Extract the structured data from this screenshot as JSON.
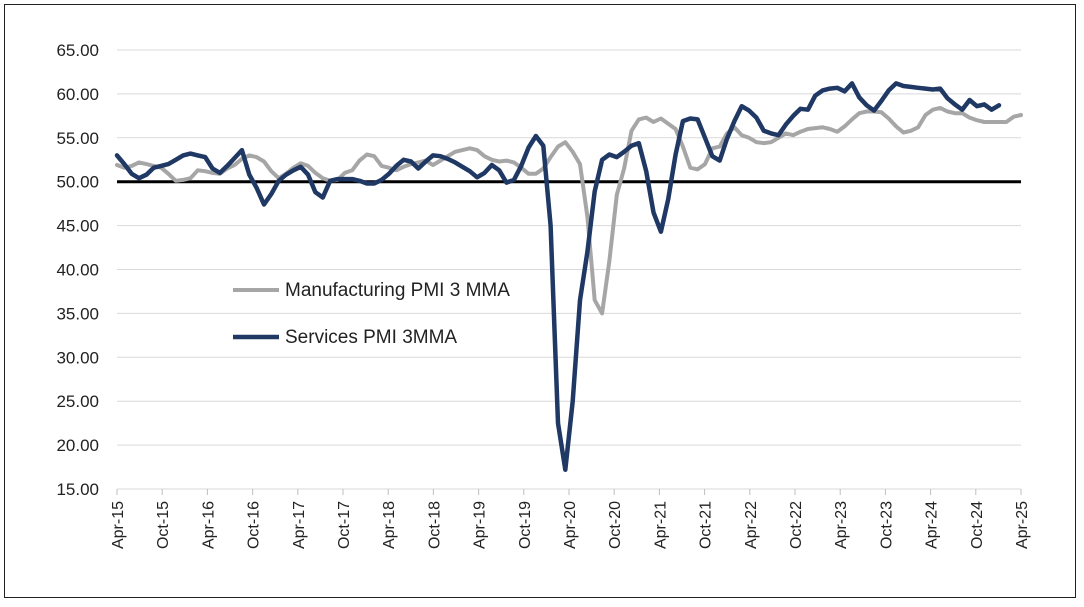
{
  "chart_data": {
    "type": "line",
    "title": "",
    "xlabel": "",
    "ylabel": "",
    "ylim": [
      15,
      65
    ],
    "yticks": [
      "15.00",
      "20.00",
      "25.00",
      "30.00",
      "35.00",
      "40.00",
      "45.00",
      "50.00",
      "55.00",
      "60.00",
      "65.00"
    ],
    "xticks": [
      "Apr-15",
      "Oct-15",
      "Apr-16",
      "Oct-16",
      "Apr-17",
      "Oct-17",
      "Apr-18",
      "Oct-18",
      "Apr-19",
      "Oct-19",
      "Apr-20",
      "Oct-20",
      "Apr-21",
      "Oct-21",
      "Apr-22",
      "Oct-22",
      "Apr-23",
      "Oct-23",
      "Apr-24",
      "Oct-24",
      "Apr-25"
    ],
    "grid": "horizontal",
    "legend_position": "center-left",
    "reference_line": 50,
    "series": [
      {
        "name": "Manufacturing PMI 3 MMA",
        "color": "#a6a6a6",
        "values": [
          51.9,
          51.6,
          51.8,
          52.2,
          52.0,
          51.8,
          51.6,
          50.9,
          50.1,
          50.2,
          50.4,
          51.3,
          51.2,
          51.0,
          50.9,
          51.5,
          51.9,
          52.6,
          53.0,
          52.8,
          52.3,
          51.2,
          50.4,
          50.9,
          51.6,
          52.1,
          51.8,
          51.0,
          50.4,
          50.1,
          50.2,
          51.0,
          51.3,
          52.4,
          53.1,
          52.9,
          51.8,
          51.6,
          51.3,
          51.7,
          52.0,
          52.2,
          52.4,
          51.9,
          52.4,
          52.9,
          53.4,
          53.6,
          53.8,
          53.6,
          52.9,
          52.5,
          52.3,
          52.4,
          52.2,
          51.6,
          50.9,
          50.9,
          51.5,
          52.8,
          54.0,
          54.5,
          53.4,
          52.0,
          46.0,
          36.5,
          35.0,
          41.0,
          48.5,
          51.5,
          55.8,
          57.1,
          57.3,
          56.8,
          57.2,
          56.6,
          56.0,
          54.0,
          51.6,
          51.4,
          52.0,
          53.8,
          54.0,
          55.5,
          56.2,
          55.3,
          55.0,
          54.5,
          54.4,
          54.5,
          55.0,
          55.5,
          55.3,
          55.7,
          56.0,
          56.1,
          56.2,
          56.0,
          55.7,
          56.3,
          57.1,
          57.8,
          58.0,
          58.0,
          57.9,
          57.2,
          56.3,
          55.6,
          55.8,
          56.2,
          57.6,
          58.2,
          58.4,
          58.0,
          57.8,
          57.8,
          57.3,
          57.0,
          56.8,
          56.8,
          56.8,
          56.8,
          57.4,
          57.6
        ]
      },
      {
        "name": "Services PMI 3MMA",
        "color": "#1f3864",
        "values": [
          53.0,
          52.0,
          50.9,
          50.4,
          50.8,
          51.6,
          51.8,
          52.0,
          52.5,
          53.0,
          53.2,
          53.0,
          52.8,
          51.5,
          51.0,
          51.8,
          52.7,
          53.6,
          50.8,
          49.3,
          47.4,
          48.6,
          50.1,
          50.8,
          51.3,
          51.7,
          50.8,
          48.8,
          48.2,
          50.1,
          50.3,
          50.3,
          50.3,
          50.1,
          49.8,
          49.8,
          50.2,
          50.9,
          51.8,
          52.5,
          52.3,
          51.5,
          52.3,
          53.0,
          52.9,
          52.6,
          52.2,
          51.7,
          51.2,
          50.5,
          51.0,
          51.9,
          51.3,
          49.9,
          50.2,
          51.8,
          53.9,
          55.2,
          54.1,
          45.0,
          22.5,
          17.2,
          25.0,
          36.5,
          42.0,
          48.9,
          52.5,
          53.1,
          52.8,
          53.4,
          54.1,
          54.4,
          51.2,
          46.5,
          44.3,
          48.0,
          53.1,
          56.9,
          57.2,
          57.1,
          55.0,
          52.9,
          52.4,
          54.9,
          56.9,
          58.6,
          58.1,
          57.3,
          55.8,
          55.5,
          55.3,
          56.5,
          57.5,
          58.3,
          58.2,
          59.8,
          60.4,
          60.6,
          60.7,
          60.3,
          61.2,
          59.6,
          58.7,
          58.1,
          59.2,
          60.4,
          61.2,
          60.9,
          60.8,
          60.7,
          60.6,
          60.5,
          60.6,
          59.5,
          58.8,
          58.2,
          59.3,
          58.6,
          58.8,
          58.2,
          58.7
        ]
      }
    ]
  }
}
